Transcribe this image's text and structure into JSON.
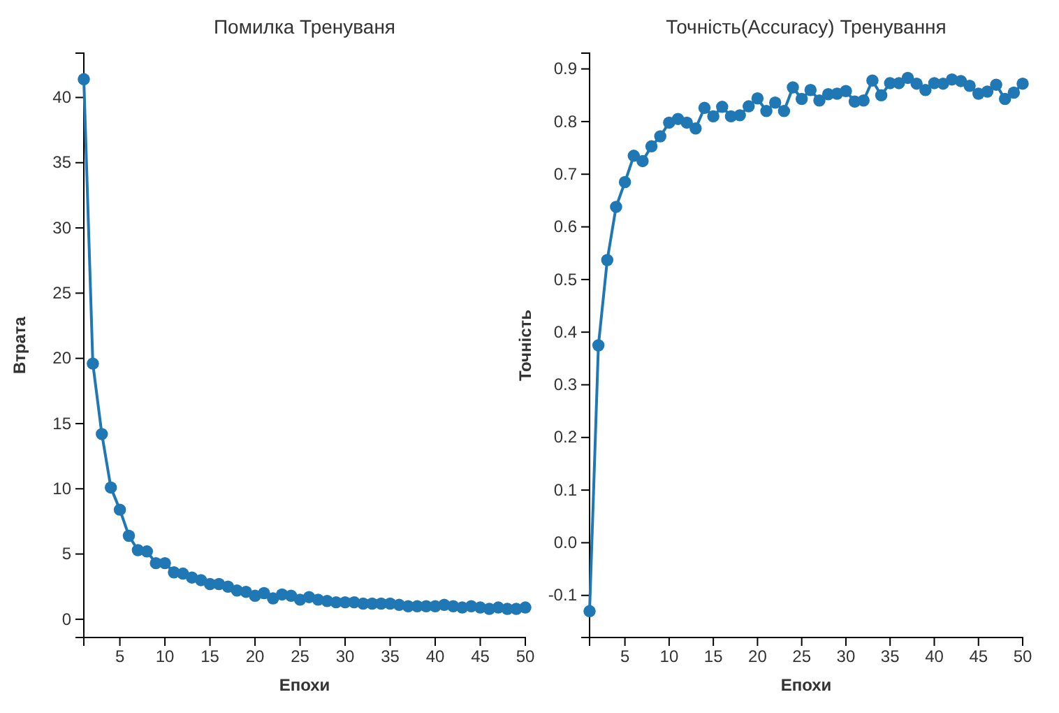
{
  "chart_data": [
    {
      "type": "line",
      "title": "Помилка Тренуваня",
      "xlabel": "Епохи",
      "ylabel": "Втрата",
      "marker": "circle",
      "x": [
        1,
        2,
        3,
        4,
        5,
        6,
        7,
        8,
        9,
        10,
        11,
        12,
        13,
        14,
        15,
        16,
        17,
        18,
        19,
        20,
        21,
        22,
        23,
        24,
        25,
        26,
        27,
        28,
        29,
        30,
        31,
        32,
        33,
        34,
        35,
        36,
        37,
        38,
        39,
        40,
        41,
        42,
        43,
        44,
        45,
        46,
        47,
        48,
        49,
        50
      ],
      "series": [
        {
          "color": "#1f77b4",
          "values": [
            41.4,
            19.6,
            14.2,
            10.1,
            8.4,
            6.4,
            5.3,
            5.2,
            4.3,
            4.3,
            3.6,
            3.5,
            3.2,
            3.0,
            2.7,
            2.7,
            2.5,
            2.2,
            2.1,
            1.8,
            2.0,
            1.6,
            1.9,
            1.8,
            1.5,
            1.7,
            1.5,
            1.4,
            1.3,
            1.3,
            1.3,
            1.2,
            1.2,
            1.2,
            1.2,
            1.1,
            1.0,
            1.0,
            1.0,
            1.0,
            1.1,
            1.0,
            0.9,
            1.0,
            0.9,
            0.8,
            0.9,
            0.8,
            0.8,
            0.9
          ]
        }
      ],
      "xlim": [
        1,
        50
      ],
      "xticks": [
        5,
        10,
        15,
        20,
        25,
        30,
        35,
        40,
        45,
        50
      ],
      "ylim": [
        -1.4,
        43.4
      ],
      "yticks": [
        0,
        5,
        10,
        15,
        20,
        25,
        30,
        35,
        40
      ]
    },
    {
      "type": "line",
      "title": "Точність(Accuracy) Тренування",
      "xlabel": "Епохи",
      "ylabel": "Точність",
      "marker": "circle",
      "x": [
        1,
        2,
        3,
        4,
        5,
        6,
        7,
        8,
        9,
        10,
        11,
        12,
        13,
        14,
        15,
        16,
        17,
        18,
        19,
        20,
        21,
        22,
        23,
        24,
        25,
        26,
        27,
        28,
        29,
        30,
        31,
        32,
        33,
        34,
        35,
        36,
        37,
        38,
        39,
        40,
        41,
        42,
        43,
        44,
        45,
        46,
        47,
        48,
        49,
        50
      ],
      "series": [
        {
          "color": "#1f77b4",
          "values": [
            -0.13,
            0.375,
            0.537,
            0.638,
            0.685,
            0.735,
            0.725,
            0.753,
            0.772,
            0.798,
            0.805,
            0.798,
            0.787,
            0.826,
            0.81,
            0.828,
            0.81,
            0.812,
            0.829,
            0.844,
            0.82,
            0.836,
            0.82,
            0.865,
            0.843,
            0.86,
            0.84,
            0.852,
            0.853,
            0.858,
            0.838,
            0.84,
            0.878,
            0.85,
            0.873,
            0.873,
            0.883,
            0.872,
            0.86,
            0.873,
            0.872,
            0.88,
            0.877,
            0.868,
            0.853,
            0.857,
            0.87,
            0.843,
            0.855,
            0.872
          ]
        }
      ],
      "xlim": [
        1,
        50
      ],
      "xticks": [
        5,
        10,
        15,
        20,
        25,
        30,
        35,
        40,
        45,
        50
      ],
      "ylim": [
        -0.18,
        0.93
      ],
      "yticks": [
        {
          "value": -0.1,
          "label": "-0.1"
        },
        {
          "value": 0,
          "label": "0.0"
        },
        {
          "value": 0.1,
          "label": "0.1"
        },
        {
          "value": 0.2,
          "label": "0.2"
        },
        {
          "value": 0.3,
          "label": "0.3"
        },
        {
          "value": 0.4,
          "label": "0.4"
        },
        {
          "value": 0.5,
          "label": "0.5"
        },
        {
          "value": 0.6,
          "label": "0.6"
        },
        {
          "value": 0.7,
          "label": "0.7"
        },
        {
          "value": 0.8,
          "label": "0.8"
        },
        {
          "value": 0.9,
          "label": "0.9"
        }
      ]
    }
  ]
}
